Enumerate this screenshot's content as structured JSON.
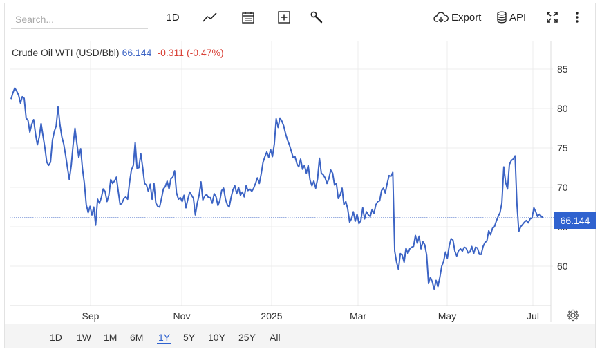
{
  "toolbar": {
    "search_placeholder": "Search...",
    "interval_label": "1D",
    "export_label": "Export",
    "api_label": "API"
  },
  "legend": {
    "name": "Crude Oil WTI (USD/Bbl)",
    "value": "66.144",
    "change": "-0.311 (-0.47%)"
  },
  "current_price_tag": "66.144",
  "range_buttons": [
    "1D",
    "1W",
    "1M",
    "6M",
    "1Y",
    "5Y",
    "10Y",
    "25Y",
    "All"
  ],
  "active_range": "1Y",
  "colors": {
    "line": "#3b63c4",
    "accent": "#2f62cf",
    "negative": "#d9443a",
    "grid": "#ececec"
  },
  "chart_data": {
    "type": "line",
    "title": "Crude Oil WTI (USD/Bbl)",
    "x_tick_labels": [
      "Sep",
      "Nov",
      "2025",
      "Mar",
      "May",
      "Jul"
    ],
    "y_tick_labels": [
      "60",
      "65",
      "70",
      "75",
      "80",
      "85"
    ],
    "ylim": [
      55.5,
      88
    ],
    "grid": true,
    "current_value": 66.144,
    "series": [
      {
        "values": [
          81.2,
          82.0,
          82.6,
          82.2,
          81.7,
          80.7,
          81.5,
          81.3,
          78.8,
          78.5,
          77.0,
          78.0,
          78.6,
          76.8,
          75.4,
          76.4,
          78.1,
          76.5,
          75.0,
          73.2,
          72.8,
          73.2,
          76.0,
          77.1,
          77.8,
          80.2,
          78.0,
          76.4,
          75.5,
          74.1,
          72.5,
          71.0,
          72.8,
          75.4,
          77.5,
          75.6,
          73.8,
          74.9,
          72.3,
          70.5,
          67.8,
          66.8,
          67.6,
          66.5,
          67.5,
          65.2,
          68.5,
          68.0,
          68.7,
          69.8,
          69.5,
          68.2,
          69.0,
          71.0,
          70.5,
          70.8,
          71.3,
          69.5,
          67.8,
          68.0,
          68.6,
          68.8,
          68.5,
          70.6,
          72.2,
          72.8,
          75.7,
          72.4,
          72.5,
          74.3,
          72.5,
          70.5,
          70.3,
          69.5,
          70.4,
          68.5,
          70.5,
          68.0,
          67.6,
          67.5,
          68.6,
          69.8,
          70.1,
          70.8,
          69.8,
          71.1,
          71.3,
          72.1,
          69.3,
          68.5,
          68.7,
          68.2,
          69.0,
          67.4,
          68.5,
          69.4,
          69.0,
          68.6,
          66.5,
          68.0,
          69.0,
          70.7,
          68.4,
          68.9,
          69.1,
          68.7,
          68.7,
          68.0,
          69.2,
          68.8,
          67.7,
          68.3,
          69.6,
          69.9,
          68.5,
          67.8,
          67.5,
          68.7,
          69.7,
          70.2,
          69.2,
          70.0,
          69.0,
          69.4,
          68.8,
          70.2,
          69.6,
          69.8,
          69.5,
          69.9,
          70.5,
          71.2,
          70.5,
          71.7,
          73.2,
          73.9,
          74.5,
          73.8,
          74.8,
          73.9,
          75.5,
          78.7,
          77.6,
          78.8,
          78.4,
          77.8,
          76.8,
          76.0,
          75.4,
          74.6,
          73.8,
          73.9,
          73.0,
          72.6,
          73.6,
          72.3,
          72.8,
          71.8,
          72.8,
          70.9,
          70.2,
          70.8,
          69.9,
          71.1,
          73.7,
          71.8,
          71.6,
          71.2,
          70.5,
          71.1,
          72.2,
          71.8,
          70.3,
          70.5,
          68.6,
          69.0,
          69.9,
          67.8,
          68.2,
          67.3,
          65.6,
          66.0,
          66.9,
          65.7,
          66.6,
          65.4,
          65.8,
          67.4,
          66.0,
          66.9,
          66.5,
          66.3,
          67.2,
          66.7,
          67.8,
          68.2,
          68.3,
          69.6,
          69.9,
          69.3,
          70.5,
          71.5,
          71.4,
          71.9,
          61.9,
          60.5,
          59.6,
          61.6,
          61.4,
          60.5,
          62.3,
          61.6,
          62.2,
          62.4,
          62.5,
          63.9,
          62.9,
          63.8,
          62.2,
          63.1,
          62.7,
          61.4,
          57.8,
          58.6,
          58.0,
          57.1,
          58.2,
          57.4,
          58.6,
          60.0,
          60.6,
          61.8,
          61.0,
          62.6,
          63.5,
          63.3,
          61.9,
          61.3,
          62.0,
          62.2,
          61.9,
          62.4,
          62.3,
          61.7,
          61.8,
          62.5,
          61.6,
          62.4,
          62.3,
          61.5,
          61.5,
          62.5,
          63.0,
          63.2,
          64.5,
          64.0,
          64.8,
          65.0,
          65.7,
          66.3,
          66.8,
          68.0,
          72.6,
          70.6,
          69.8,
          72.9,
          73.4,
          73.6,
          74.0,
          67.9,
          64.4,
          65.0,
          65.3,
          65.6,
          65.8,
          65.5,
          66.0,
          66.1,
          67.4,
          66.9,
          66.3,
          66.6,
          66.3,
          66.144
        ]
      }
    ]
  }
}
